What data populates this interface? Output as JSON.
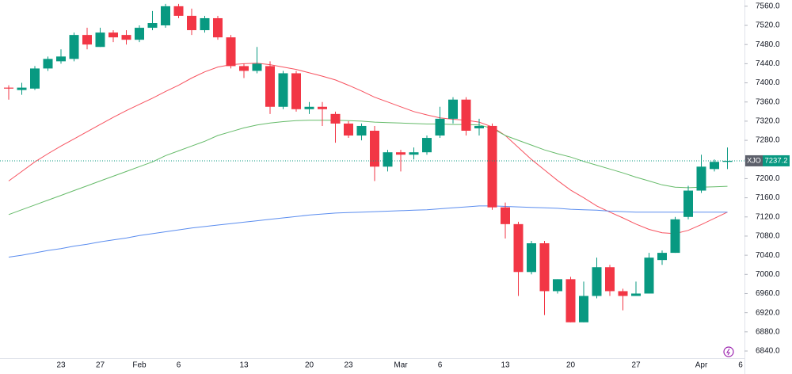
{
  "chart_data": {
    "type": "candlestick",
    "categories": [
      null,
      null,
      null,
      null,
      "23",
      null,
      null,
      "27",
      null,
      null,
      "Feb",
      null,
      null,
      "6",
      null,
      null,
      null,
      null,
      "13",
      null,
      null,
      null,
      null,
      "20",
      null,
      null,
      "23",
      null,
      null,
      null,
      "Mar",
      null,
      null,
      "6",
      null,
      null,
      null,
      null,
      "13",
      null,
      null,
      null,
      null,
      "20",
      null,
      null,
      null,
      null,
      "27",
      null,
      null,
      null,
      null,
      "Apr",
      null,
      null,
      "6"
    ],
    "open": [
      7390,
      7385,
      7388,
      7430,
      7445,
      7450,
      7500,
      7475,
      7505,
      7500,
      7490,
      7515,
      7520,
      7560,
      7540,
      7510,
      7535,
      7495,
      7435,
      7425,
      7435,
      7350,
      7420,
      7345,
      7350,
      7335,
      7315,
      7290,
      7300,
      7225,
      7255,
      7250,
      7255,
      7290,
      7325,
      7365,
      7305,
      7310,
      7140,
      7105,
      7005,
      7065,
      6965,
      6990,
      6900,
      6955,
      7015,
      6965,
      6955,
      6960,
      7030,
      7045,
      7120,
      7175,
      7220,
      7235,
      null
    ],
    "high": [
      7395,
      7400,
      7435,
      7455,
      7470,
      7505,
      7515,
      7515,
      7510,
      7510,
      7520,
      7550,
      7565,
      7565,
      7555,
      7540,
      7540,
      7500,
      7440,
      7475,
      7445,
      7425,
      7425,
      7360,
      7360,
      7340,
      7320,
      7315,
      7310,
      7260,
      7260,
      7265,
      7290,
      7350,
      7370,
      7370,
      7325,
      7315,
      7150,
      7110,
      7070,
      7070,
      6990,
      6995,
      6985,
      7035,
      7020,
      6970,
      6985,
      7045,
      7050,
      7120,
      7185,
      7250,
      7240,
      7265,
      null
    ],
    "low": [
      7365,
      7375,
      7385,
      7425,
      7440,
      7445,
      7470,
      7475,
      7485,
      7480,
      7485,
      7510,
      7515,
      7535,
      7500,
      7505,
      7490,
      7430,
      7410,
      7420,
      7335,
      7345,
      7340,
      7335,
      7310,
      7275,
      7285,
      7280,
      7195,
      7215,
      7215,
      7240,
      7250,
      7285,
      7315,
      7290,
      7290,
      7135,
      7075,
      6955,
      7000,
      6915,
      6960,
      6900,
      6900,
      6950,
      6955,
      6925,
      6955,
      6960,
      7020,
      7045,
      7115,
      7170,
      7215,
      7220,
      null
    ],
    "close": [
      7388,
      7390,
      7430,
      7450,
      7455,
      7500,
      7480,
      7505,
      7495,
      7490,
      7515,
      7525,
      7560,
      7540,
      7510,
      7535,
      7495,
      7435,
      7425,
      7440,
      7350,
      7420,
      7345,
      7350,
      7345,
      7315,
      7290,
      7310,
      7225,
      7255,
      7250,
      7255,
      7285,
      7325,
      7365,
      7300,
      7310,
      7140,
      7105,
      7005,
      7065,
      6965,
      6990,
      6900,
      6955,
      7015,
      6965,
      6955,
      6960,
      7035,
      7045,
      7115,
      7175,
      7225,
      7235,
      7237.2,
      null
    ],
    "up_color": "#089981",
    "down_color": "#f23645",
    "series": [
      {
        "color": "#f7525f",
        "values": [
          7195,
          7215,
          7235,
          7252,
          7268,
          7283,
          7298,
          7313,
          7328,
          7342,
          7355,
          7368,
          7382,
          7395,
          7410,
          7423,
          7433,
          7438,
          7440,
          7441,
          7438,
          7433,
          7428,
          7421,
          7414,
          7406,
          7395,
          7383,
          7370,
          7360,
          7350,
          7340,
          7333,
          7327,
          7324,
          7322,
          7318,
          7308,
          7290,
          7265,
          7240,
          7218,
          7196,
          7176,
          7160,
          7143,
          7130,
          7118,
          7105,
          7094,
          7087,
          7085,
          7092,
          7104,
          7117,
          7130,
          null
        ]
      },
      {
        "color": "#66bb6a",
        "values": [
          7125,
          7135,
          7145,
          7155,
          7165,
          7175,
          7185,
          7195,
          7205,
          7215,
          7225,
          7235,
          7248,
          7258,
          7268,
          7278,
          7290,
          7298,
          7306,
          7312,
          7316,
          7319,
          7321,
          7322,
          7322,
          7322,
          7321,
          7320,
          7318,
          7317,
          7316,
          7315,
          7314,
          7314,
          7313,
          7313,
          7312,
          7305,
          7290,
          7280,
          7270,
          7260,
          7252,
          7245,
          7236,
          7228,
          7220,
          7212,
          7203,
          7195,
          7187,
          7182,
          7181,
          7182,
          7183,
          7184,
          null
        ]
      },
      {
        "color": "#5b8def",
        "values": [
          7036,
          7040,
          7045,
          7050,
          7054,
          7059,
          7063,
          7068,
          7072,
          7076,
          7081,
          7085,
          7089,
          7093,
          7097,
          7100,
          7103,
          7106,
          7109,
          7112,
          7115,
          7118,
          7121,
          7124,
          7126,
          7128,
          7129,
          7130,
          7131,
          7132,
          7133,
          7134,
          7135,
          7137,
          7139,
          7141,
          7143,
          7143,
          7142,
          7141,
          7140,
          7139,
          7138,
          7136,
          7135,
          7134,
          7132,
          7131,
          7130,
          7130,
          7130,
          7130,
          7130,
          7130,
          7130,
          7130,
          null
        ]
      }
    ],
    "ylim": [
      6792,
      7573
    ],
    "yticks": [
      {
        "value": 6840,
        "label": "6840.0"
      },
      {
        "value": 6880,
        "label": "6880.0"
      },
      {
        "value": 6920,
        "label": "6920.0"
      },
      {
        "value": 6960,
        "label": "6960.0"
      },
      {
        "value": 7000,
        "label": "7000.0"
      },
      {
        "value": 7040,
        "label": "7040.0"
      },
      {
        "value": 7080,
        "label": "7080.0"
      },
      {
        "value": 7120,
        "label": "7120.0"
      },
      {
        "value": 7160,
        "label": "7160.0"
      },
      {
        "value": 7200,
        "label": "7200.0"
      },
      {
        "value": 7240,
        "label": "7240.0"
      },
      {
        "value": 7280,
        "label": "7280.0"
      },
      {
        "value": 7320,
        "label": "7320.0"
      },
      {
        "value": 7360,
        "label": "7360.0"
      },
      {
        "value": 7400,
        "label": "7400.0"
      },
      {
        "value": 7440,
        "label": "7440.0"
      },
      {
        "value": 7480,
        "label": "7480.0"
      },
      {
        "value": 7520,
        "label": "7520.0"
      },
      {
        "value": 7560,
        "label": "7560.0"
      }
    ],
    "symbol": "XJO",
    "last_value": 7237.2,
    "last_color": "#089981"
  }
}
